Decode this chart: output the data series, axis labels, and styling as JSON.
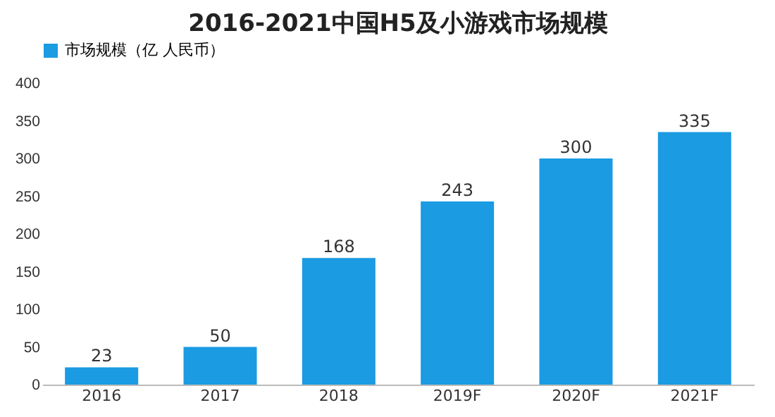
{
  "chart_data": {
    "type": "bar",
    "title": "2016-2021中国H5及小游戏市场规模",
    "categories": [
      "2016",
      "2017",
      "2018",
      "2019F",
      "2020F",
      "2021F"
    ],
    "series": [
      {
        "name": "市场规模（亿 人民币）",
        "color": "#1a9be2",
        "values": [
          23,
          50,
          168,
          243,
          300,
          335
        ]
      }
    ],
    "ylim": [
      0,
      400
    ],
    "yticks": [
      0,
      50,
      100,
      150,
      200,
      250,
      300,
      350,
      400
    ],
    "data_labels": true,
    "grid": false,
    "legend": "top"
  }
}
